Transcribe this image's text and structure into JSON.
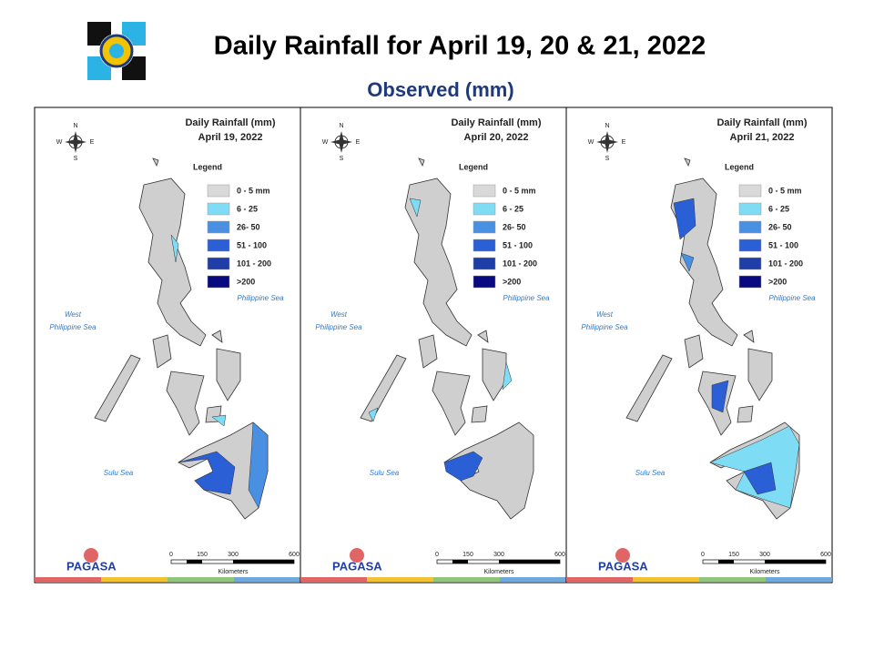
{
  "header": {
    "title": "Daily Rainfall for April 19, 20 & 21, 2022",
    "subtitle": "Observed (mm)"
  },
  "panels": [
    {
      "title": "Daily Rainfall (mm)",
      "date": "April 19, 2022"
    },
    {
      "title": "Daily Rainfall (mm)",
      "date": "April 20, 2022"
    },
    {
      "title": "Daily Rainfall (mm)",
      "date": "April 21, 2022"
    }
  ],
  "legend": {
    "title": "Legend",
    "items": [
      {
        "label": "0 - 5 mm",
        "color": "#d9d9d9"
      },
      {
        "label": "6 - 25",
        "color": "#7fdcf5"
      },
      {
        "label": "26- 50",
        "color": "#4a90e2"
      },
      {
        "label": "51 - 100",
        "color": "#2a5fd6"
      },
      {
        "label": "101 - 200",
        "color": "#1f3ea8"
      },
      {
        "label": ">200",
        "color": "#0a0a80"
      }
    ]
  },
  "compass": {
    "n": "N",
    "s": "S",
    "e": "E",
    "w": "W"
  },
  "seas": {
    "east": "Philippine Sea",
    "west_1": "West",
    "west_2": "Philippine Sea",
    "south": "Sulu Sea"
  },
  "scale": {
    "ticks": [
      "0",
      "150",
      "300",
      "600"
    ],
    "unit": "Kilometers"
  },
  "logo": {
    "text": "PAGASA"
  }
}
